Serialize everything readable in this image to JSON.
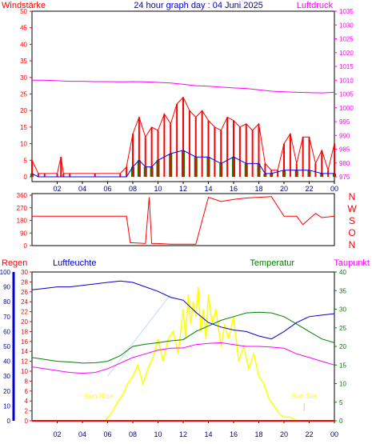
{
  "header": {
    "title": "24 hour graph day : 04 Juni 2025",
    "left_label": "Windstärke",
    "right_label": "Luftdruck"
  },
  "colors": {
    "wind": "#ff0000",
    "gust": "#0000ff",
    "wind_fill": "#008000",
    "pressure": "#ff00ff",
    "direction": "#ff0000",
    "humidity": "#0000cc",
    "temperature": "#008000",
    "dewpoint": "#ff00ff",
    "solar": "#ffff00",
    "rain": "#ff0000"
  },
  "chart_data": [
    {
      "type": "line",
      "name": "wind_pressure",
      "x_ticks": [
        "02",
        "04",
        "06",
        "08",
        "10",
        "12",
        "14",
        "16",
        "18",
        "20",
        "22",
        "00"
      ],
      "left_axis": {
        "label": "Windstärke",
        "ticks": [
          "0",
          "5",
          "10",
          "15",
          "20",
          "25",
          "30",
          "35",
          "40",
          "45",
          "50"
        ],
        "ylim": [
          0,
          50
        ]
      },
      "right_axis": {
        "label": "Luftdruck",
        "ticks": [
          "975",
          "980",
          "985",
          "990",
          "995",
          "1000",
          "1005",
          "1010",
          "1015",
          "1020",
          "1025",
          "1030",
          "1035"
        ],
        "ylim": [
          975,
          1035
        ]
      },
      "series": [
        {
          "key": "pressure",
          "axis": "right",
          "x": [
            0,
            1,
            2,
            3,
            4,
            5,
            6,
            7,
            8,
            9,
            10,
            11,
            12,
            13,
            14,
            15,
            16,
            17,
            18,
            19,
            20,
            21,
            22,
            23,
            24
          ],
          "values": [
            1010,
            1010,
            1009.8,
            1009.6,
            1009.6,
            1009.5,
            1009.5,
            1009.4,
            1009.5,
            1009.4,
            1009.2,
            1009,
            1008.5,
            1008,
            1007.8,
            1007.5,
            1007.2,
            1007,
            1006.5,
            1006,
            1005.8,
            1005.6,
            1005.5,
            1005.4,
            1005.6
          ]
        },
        {
          "key": "wind",
          "axis": "left",
          "x": [
            0,
            0.5,
            1,
            2,
            2.3,
            2.5,
            3,
            5,
            7,
            7.5,
            8,
            8.5,
            9,
            9.5,
            10,
            10.5,
            11,
            11.5,
            12,
            12.5,
            13,
            13.5,
            14,
            14.5,
            15,
            15.5,
            16,
            16.5,
            17,
            17.5,
            18,
            18.5,
            19,
            19.5,
            20,
            20.5,
            21,
            21.5,
            22,
            22.5,
            23,
            23.5,
            24
          ],
          "values": [
            5,
            1,
            1,
            1,
            6,
            1,
            1,
            1,
            1,
            3,
            13,
            18,
            12,
            15,
            14,
            19,
            16,
            22,
            24,
            20,
            18,
            20,
            17,
            15,
            14,
            18,
            17,
            15,
            16,
            14,
            16,
            4,
            2,
            2,
            10,
            13,
            4,
            12,
            12,
            4,
            8,
            2,
            10
          ]
        },
        {
          "key": "gust",
          "axis": "left",
          "x": [
            0,
            0.5,
            1,
            5,
            7,
            7.5,
            8,
            8.5,
            9,
            9.5,
            10,
            11,
            12,
            13,
            14,
            15,
            16,
            17,
            18,
            18.5,
            19,
            20,
            21,
            22,
            23,
            24
          ],
          "values": [
            1,
            0,
            0,
            0,
            0,
            0,
            3,
            5,
            3,
            3,
            5,
            7,
            8,
            6,
            6,
            4,
            6,
            4,
            4,
            1,
            1,
            2,
            2,
            2,
            1,
            1
          ]
        }
      ]
    },
    {
      "type": "line",
      "name": "wind_direction",
      "y_ticks": [
        "0",
        "90",
        "180",
        "270",
        "360"
      ],
      "ylim": [
        0,
        360
      ],
      "direction_labels": [
        "N",
        "W",
        "S",
        "O",
        "N"
      ],
      "series": [
        {
          "key": "direction",
          "x": [
            0,
            1,
            2,
            3,
            4,
            5,
            6,
            7,
            7.5,
            7.8,
            8,
            9,
            9.3,
            9.5,
            10,
            11,
            12,
            13,
            14,
            15,
            16,
            17,
            18,
            19,
            20,
            21,
            21.5,
            22,
            22.5,
            23,
            24
          ],
          "values": [
            210,
            210,
            210,
            210,
            210,
            210,
            210,
            210,
            210,
            20,
            20,
            15,
            345,
            15,
            15,
            10,
            10,
            10,
            345,
            315,
            330,
            340,
            345,
            350,
            210,
            210,
            150,
            190,
            230,
            200,
            210
          ]
        }
      ]
    },
    {
      "type": "line",
      "name": "weather",
      "left_labels": {
        "rain": "Regen",
        "humidity": "Luftfeuchte"
      },
      "right_labels": {
        "temperature": "Temperatur",
        "dewpoint": "Taupunkt"
      },
      "humidity_axis": {
        "ticks": [
          "0",
          "10",
          "20",
          "30",
          "40",
          "50",
          "60",
          "70",
          "80",
          "90",
          "100"
        ],
        "ylim": [
          0,
          100
        ]
      },
      "rain_axis": {
        "ticks": [
          "0",
          "2",
          "4",
          "6",
          "8",
          "10",
          "12",
          "14",
          "16",
          "18",
          "20",
          "22",
          "24",
          "26",
          "28",
          "30"
        ],
        "ylim": [
          0,
          30
        ]
      },
      "temp_axis": {
        "ticks": [
          "0",
          "5",
          "10",
          "15",
          "20",
          "25",
          "30",
          "35",
          "40"
        ],
        "ylim": [
          0,
          40
        ]
      },
      "sun_rise": "Sun Rise",
      "sun_set": "Sun Set",
      "sun_rise_hour": 5.3,
      "sun_set_hour": 21.6,
      "series": [
        {
          "key": "humidity",
          "x": [
            0,
            1,
            2,
            3,
            4,
            5,
            6,
            7,
            8,
            9,
            10,
            11,
            12,
            13,
            14,
            15,
            16,
            17,
            18,
            19,
            20,
            21,
            22,
            23,
            24
          ],
          "values": [
            88,
            89,
            90,
            90,
            91,
            92,
            93,
            94,
            93,
            90,
            87,
            83,
            81,
            73,
            66,
            63,
            61,
            60,
            57,
            55,
            60,
            66,
            70,
            71,
            72
          ]
        },
        {
          "key": "temperature",
          "x": [
            0,
            1,
            2,
            3,
            4,
            5,
            6,
            7,
            8,
            9,
            10,
            11,
            12,
            13,
            14,
            15,
            16,
            17,
            18,
            19,
            20,
            21,
            22,
            23,
            24
          ],
          "values": [
            17,
            16.5,
            16,
            15.8,
            15.5,
            15.6,
            16,
            17.5,
            20,
            20.6,
            21,
            21.5,
            21.8,
            24,
            25.5,
            27,
            28,
            29,
            29.2,
            29,
            28,
            26,
            24,
            22,
            21
          ]
        },
        {
          "key": "dewpoint",
          "x": [
            0,
            1,
            2,
            3,
            4,
            5,
            6,
            7,
            8,
            9,
            10,
            11,
            12,
            13,
            14,
            15,
            16,
            17,
            18,
            19,
            20,
            21,
            22,
            23,
            24
          ],
          "values": [
            14.5,
            14,
            13.5,
            13,
            12.8,
            13,
            14,
            15.5,
            17,
            18,
            19,
            19.5,
            19.6,
            20.5,
            20.8,
            21,
            20.5,
            20,
            20,
            19.8,
            19.5,
            18,
            17,
            16,
            15
          ]
        },
        {
          "key": "solar",
          "x": [
            5.3,
            5.8,
            6.3,
            6.8,
            7.2,
            7.6,
            8,
            8.4,
            8.8,
            9.2,
            9.6,
            10,
            10.4,
            10.8,
            11.2,
            11.6,
            12,
            12.2,
            12.4,
            12.6,
            12.8,
            13,
            13.2,
            13.4,
            13.6,
            13.8,
            14,
            14.3,
            14.6,
            15,
            15.3,
            15.6,
            16,
            16.4,
            16.8,
            17.2,
            17.6,
            18,
            18.4,
            18.8,
            19.2,
            19.6,
            20,
            20.5,
            21
          ],
          "values": [
            0,
            0,
            2,
            5,
            7,
            10,
            12,
            15,
            10,
            14,
            17,
            22,
            16,
            22,
            24,
            18,
            30,
            22,
            34,
            26,
            32,
            28,
            36,
            24,
            30,
            22,
            34,
            26,
            30,
            20,
            26,
            22,
            28,
            16,
            20,
            14,
            18,
            12,
            10,
            6,
            4,
            2,
            1,
            1,
            0
          ]
        },
        {
          "key": "rain",
          "x": [
            0,
            24
          ],
          "values": [
            0,
            0
          ]
        }
      ],
      "x_ticks": [
        "02",
        "04",
        "06",
        "08",
        "10",
        "12",
        "14",
        "16",
        "18",
        "20",
        "22",
        "00"
      ]
    }
  ]
}
